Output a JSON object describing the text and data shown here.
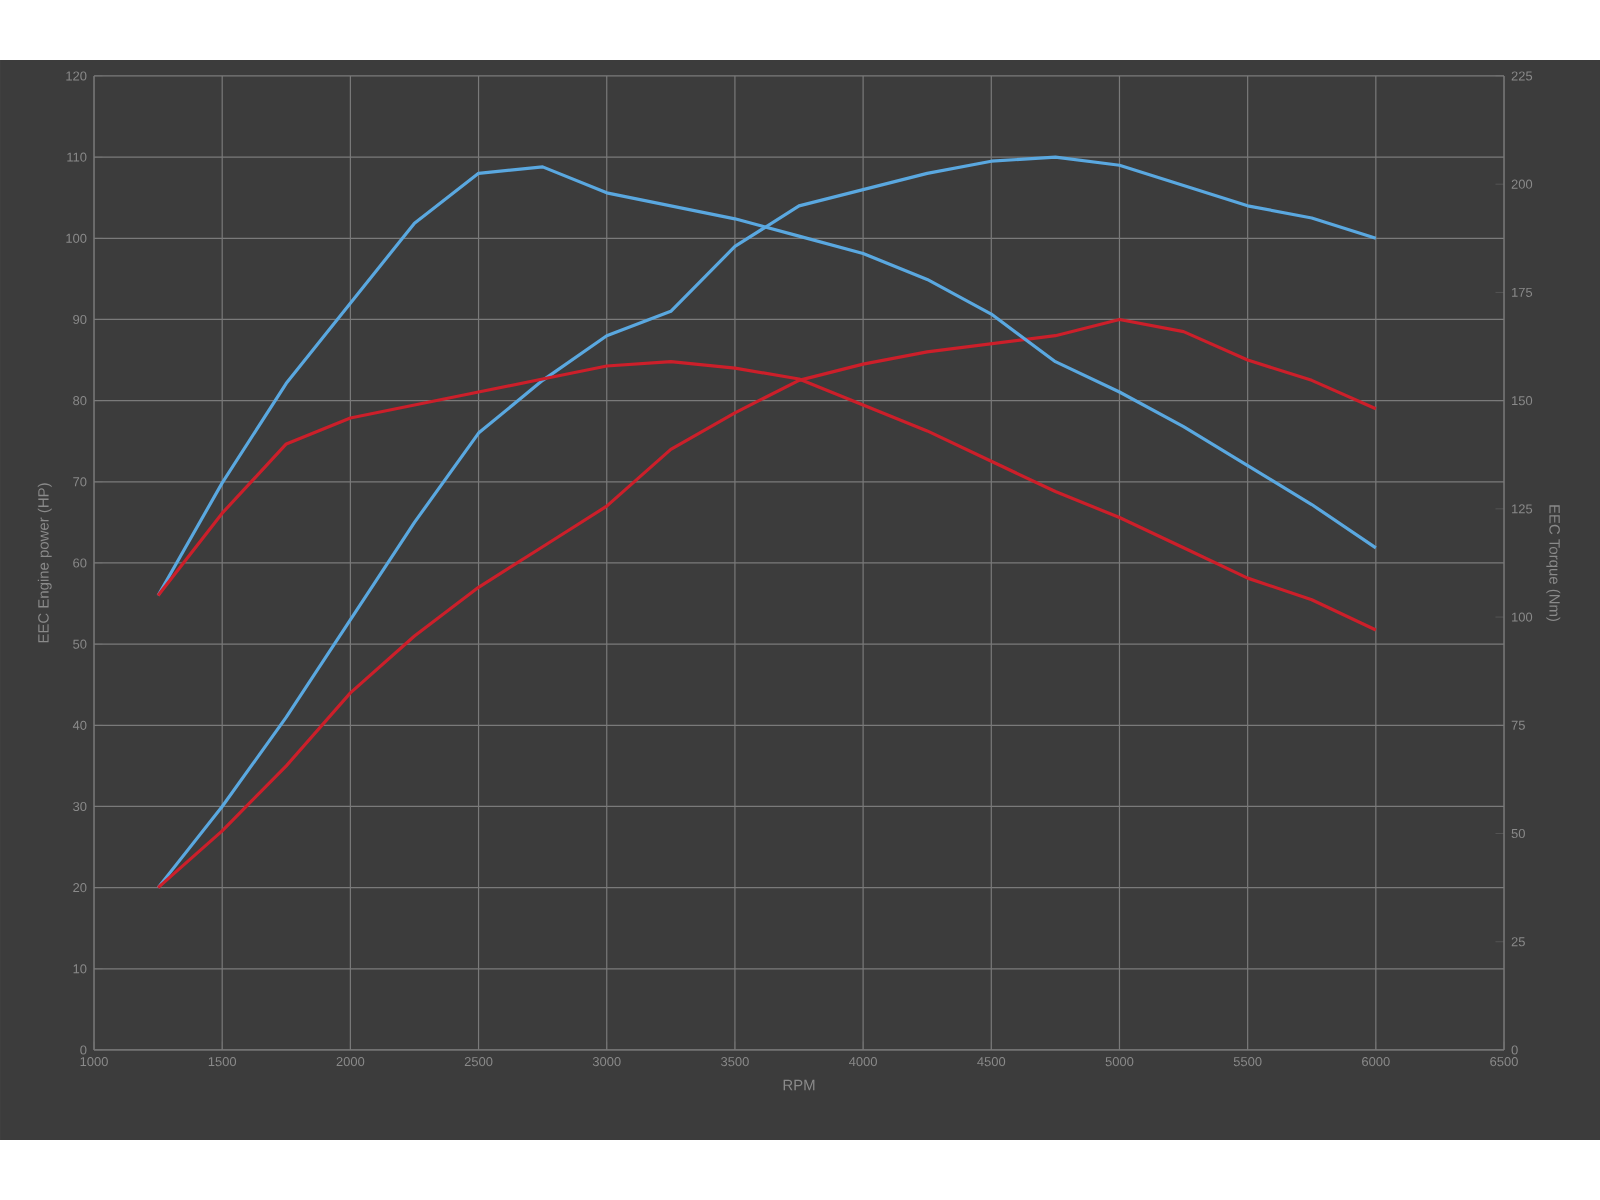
{
  "chart_data": {
    "type": "line",
    "xlabel": "RPM",
    "ylabel": "EEC Engine power (HP)",
    "y2label": "EEC Torque (Nm)",
    "x": [
      1250,
      1500,
      1750,
      2000,
      2250,
      2500,
      2750,
      3000,
      3250,
      3500,
      3750,
      4000,
      4250,
      4500,
      4750,
      5000,
      5250,
      5500,
      5750,
      6000
    ],
    "series": [
      {
        "color": "#5aa8e0",
        "values": [
          20,
          30,
          41,
          53,
          65,
          76,
          82.5,
          88,
          91,
          99,
          104,
          106,
          108,
          109.5,
          110,
          109,
          106.5,
          104,
          102.5,
          100
        ]
      },
      {
        "color": "#5aa8e0",
        "axis": "y2",
        "values": [
          105,
          131,
          154,
          172.5,
          191,
          202.5,
          204,
          198,
          195,
          192,
          188,
          184,
          178,
          170,
          159,
          152,
          144,
          135,
          126,
          116
        ]
      },
      {
        "color": "#cc1f2a",
        "values": [
          20,
          27,
          35,
          44,
          51,
          57,
          62,
          67,
          74,
          78.5,
          82.5,
          84.5,
          86,
          87,
          88,
          90,
          88.5,
          85,
          82.5,
          79
        ]
      },
      {
        "color": "#cc1f2a",
        "axis": "y2",
        "values": [
          105,
          124,
          140,
          146,
          149,
          152,
          155,
          158,
          159,
          157.5,
          155,
          149,
          143,
          136,
          129,
          123,
          116,
          109,
          104,
          97
        ]
      }
    ],
    "xlim": [
      1000,
      6500
    ],
    "ylim": [
      0,
      120
    ],
    "y2lim": [
      0,
      225
    ],
    "xticks": [
      1000,
      1500,
      2000,
      2500,
      3000,
      3500,
      4000,
      4500,
      5000,
      5500,
      6000,
      6500
    ],
    "yticks": [
      0,
      10,
      20,
      30,
      40,
      50,
      60,
      70,
      80,
      90,
      100,
      110,
      120
    ],
    "y2ticks": [
      0,
      25,
      50,
      75,
      100,
      125,
      150,
      175,
      200,
      225
    ],
    "grid": true
  }
}
